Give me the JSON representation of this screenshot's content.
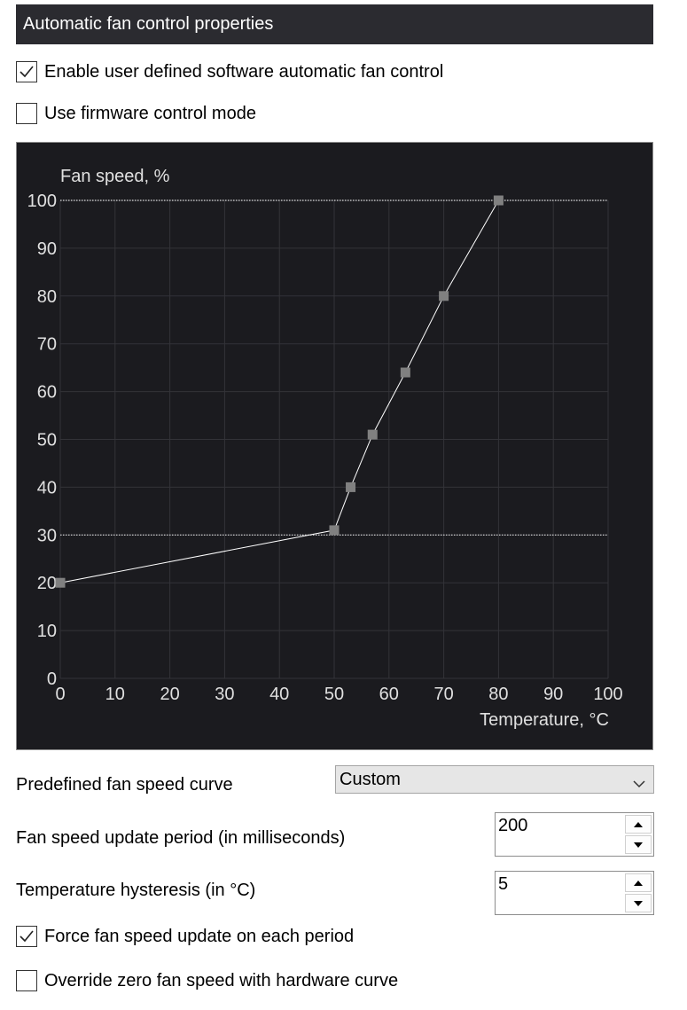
{
  "header": {
    "title": "Automatic fan control properties"
  },
  "options": {
    "enable_auto": {
      "label": "Enable user defined software automatic fan control",
      "checked": true
    },
    "firmware_mode": {
      "label": "Use firmware control mode",
      "checked": false
    },
    "force_update": {
      "label": "Force fan speed update on each period",
      "checked": true
    },
    "override_zero": {
      "label": "Override zero fan speed with hardware curve",
      "checked": false
    }
  },
  "chart_data": {
    "type": "line",
    "ylabel": "Fan speed, %",
    "xlabel": "Temperature, °C",
    "xlim": [
      0,
      100
    ],
    "ylim": [
      0,
      100
    ],
    "x_ticks": [
      "0",
      "10",
      "20",
      "30",
      "40",
      "50",
      "60",
      "70",
      "80",
      "90",
      "100"
    ],
    "y_ticks": [
      "0",
      "10",
      "20",
      "30",
      "40",
      "50",
      "60",
      "70",
      "80",
      "90",
      "100"
    ],
    "grid": true,
    "limit_lines": [
      30,
      100
    ],
    "points": [
      {
        "x": 0,
        "y": 20
      },
      {
        "x": 50,
        "y": 31
      },
      {
        "x": 53,
        "y": 40
      },
      {
        "x": 57,
        "y": 51
      },
      {
        "x": 63,
        "y": 64
      },
      {
        "x": 70,
        "y": 80
      },
      {
        "x": 80,
        "y": 100
      }
    ],
    "line_color": "#ffffff",
    "point_color": "#808080",
    "grid_color": "#333338",
    "text_color": "#e0e0e0"
  },
  "form": {
    "curve_label": "Predefined fan speed curve",
    "curve_value": "Custom",
    "period_label": "Fan speed update period (in milliseconds)",
    "period_value": "200",
    "hysteresis_label": "Temperature hysteresis (in °C)",
    "hysteresis_value": "5"
  },
  "icons": {
    "check": "checkmark-icon",
    "chevron": "chevron-down-icon",
    "up": "arrow-up-icon",
    "down": "arrow-down-icon"
  }
}
